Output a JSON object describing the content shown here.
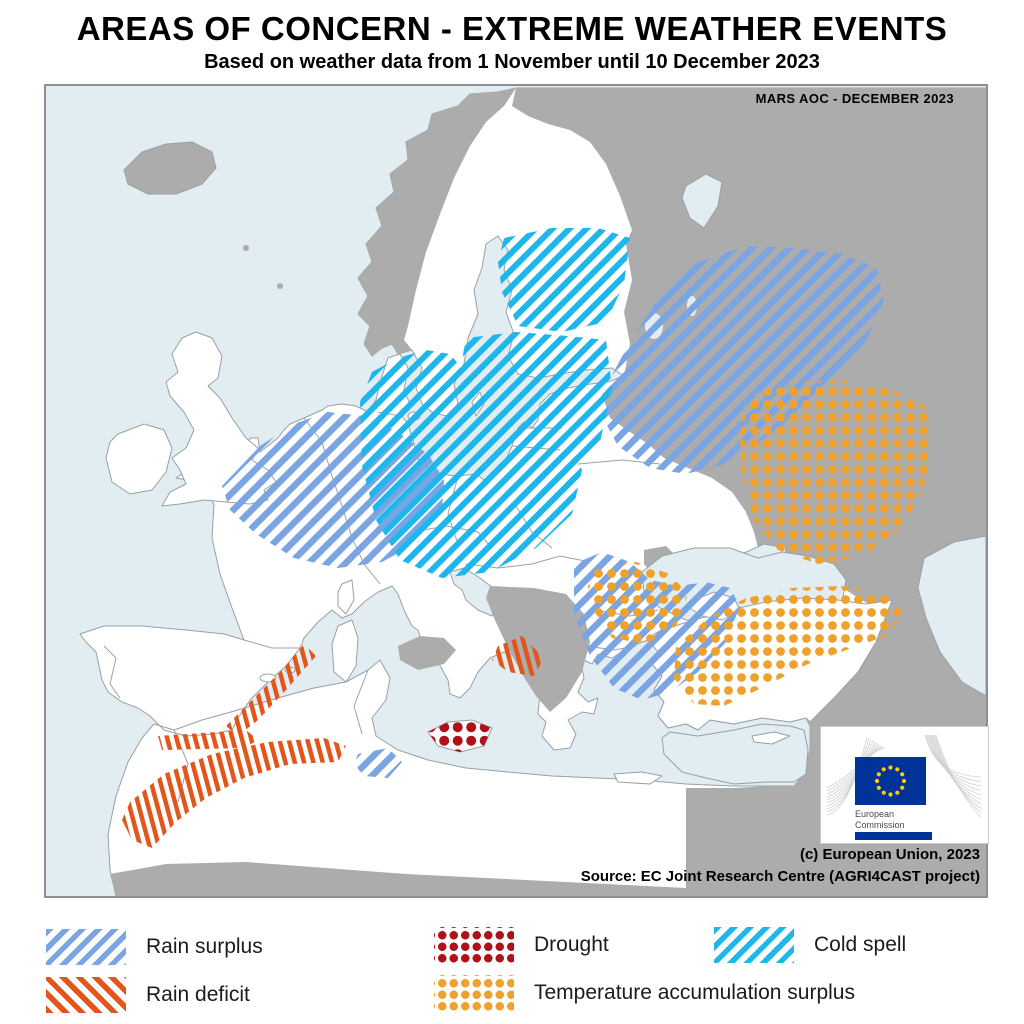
{
  "header": {
    "title": "AREAS OF CONCERN - EXTREME WEATHER EVENTS",
    "subtitle": "Based on weather data from 1 November until 10 December 2023"
  },
  "map": {
    "corner_label": "MARS AOC - DECEMBER 2023",
    "copyright": "(c) European Union, 2023",
    "source": "Source: EC Joint Research Centre (AGRI4CAST project)",
    "logo": {
      "line1": "European",
      "line2": "Commission"
    }
  },
  "legend": {
    "items": [
      {
        "label": "Rain surplus",
        "pattern": "hatch",
        "direction": "ne",
        "color": "#7AA4E2"
      },
      {
        "label": "Rain deficit",
        "pattern": "hatch",
        "direction": "nw",
        "color": "#E2561B"
      },
      {
        "label": "Drought",
        "pattern": "dots",
        "color": "#AE1117"
      },
      {
        "label": "Temperature accumulation surplus",
        "pattern": "dots",
        "color": "#EFA12D"
      },
      {
        "label": "Cold spell",
        "pattern": "hatch",
        "direction": "ne",
        "color": "#1FB6EB"
      }
    ]
  },
  "colors": {
    "sea": "#E2EDF2",
    "land_covered": "#FFFFFF",
    "land_not_covered": "#ACACAC",
    "coastline": "#97A0A6",
    "eu_flag_blue": "#003399",
    "eu_star_yellow": "#FFCC00"
  }
}
